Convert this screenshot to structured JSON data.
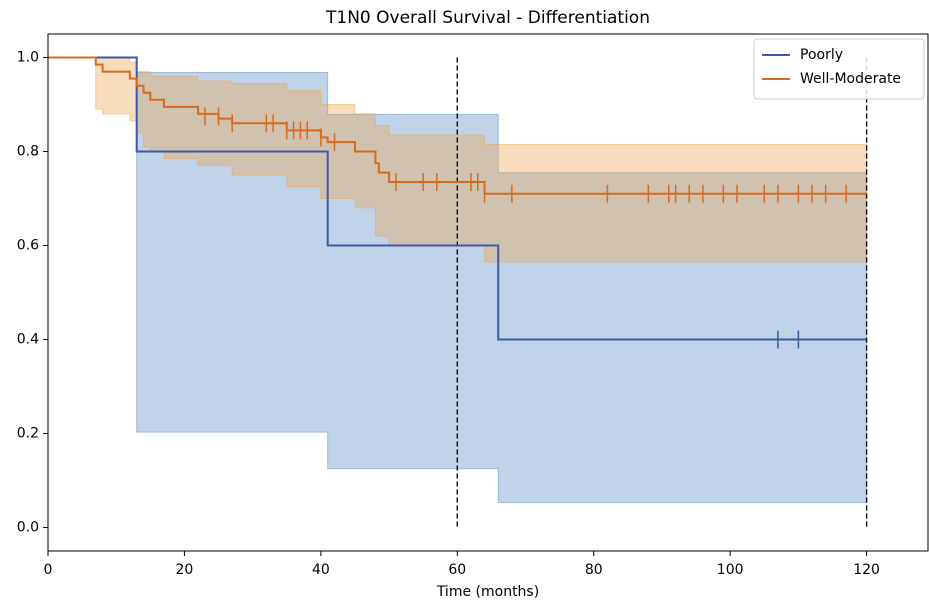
{
  "chart_data": {
    "type": "kaplan-meier",
    "title": "T1N0 Overall Survival - Differentiation",
    "x_label": "Time (months)",
    "xlim": [
      0,
      129
    ],
    "ylim": [
      -0.05,
      1.05
    ],
    "xticks": [
      0,
      20,
      40,
      60,
      80,
      100,
      120
    ],
    "yticks": [
      {
        "value": 0,
        "label": "0.0"
      },
      {
        "value": 0.2,
        "label": "0.2"
      },
      {
        "value": 0.4,
        "label": "0.4"
      },
      {
        "value": 0.6,
        "label": "0.6"
      },
      {
        "value": 0.8,
        "label": "0.8"
      },
      {
        "value": 1,
        "label": "1.0"
      }
    ],
    "reference_lines": [
      60,
      120
    ],
    "legend": "upper right",
    "series": [
      {
        "name": "Poorly",
        "color": "#3b5ba5",
        "band_color": "#5b8cc6",
        "x": [
          0,
          13,
          41,
          66,
          120
        ],
        "values": [
          1.0,
          0.8,
          0.6,
          0.4,
          0.4
        ],
        "ci_upper": [
          1.0,
          0.968,
          0.879,
          0.755,
          0.755
        ],
        "ci_lower": [
          1.0,
          0.203,
          0.125,
          0.053,
          0.053
        ],
        "censor_x": [
          107,
          110
        ],
        "censor_values": [
          0.4,
          0.4
        ]
      },
      {
        "name": "Well-Moderate",
        "color": "#d9691f",
        "band_color": "#eba550",
        "x": [
          0,
          7,
          8,
          12,
          13,
          14,
          15,
          17,
          22,
          25,
          27,
          35,
          40,
          41,
          45,
          48,
          48.5,
          50,
          64,
          120
        ],
        "values": [
          1.0,
          0.985,
          0.97,
          0.955,
          0.94,
          0.925,
          0.91,
          0.895,
          0.88,
          0.87,
          0.86,
          0.845,
          0.83,
          0.82,
          0.8,
          0.775,
          0.755,
          0.735,
          0.71,
          0.71
        ],
        "ci_upper": [
          1.0,
          1.0,
          1.0,
          0.99,
          0.97,
          0.97,
          0.96,
          0.96,
          0.95,
          0.95,
          0.945,
          0.93,
          0.9,
          0.9,
          0.88,
          0.855,
          0.855,
          0.835,
          0.815,
          0.815
        ],
        "ci_lower": [
          1.0,
          0.89,
          0.88,
          0.865,
          0.84,
          0.81,
          0.8,
          0.785,
          0.77,
          0.77,
          0.75,
          0.725,
          0.7,
          0.7,
          0.68,
          0.62,
          0.62,
          0.6,
          0.565,
          0.565
        ],
        "censor_x": [
          23,
          25,
          27,
          32,
          33,
          35,
          36,
          37,
          38,
          40,
          42,
          51,
          55,
          57,
          62,
          63,
          64,
          68,
          82,
          88,
          91,
          92,
          94,
          96,
          99,
          101,
          105,
          107,
          110,
          112,
          114,
          117
        ],
        "censor_values": [
          0.875,
          0.875,
          0.86,
          0.86,
          0.86,
          0.845,
          0.845,
          0.845,
          0.845,
          0.83,
          0.82,
          0.735,
          0.735,
          0.735,
          0.735,
          0.735,
          0.71,
          0.71,
          0.71,
          0.71,
          0.71,
          0.71,
          0.71,
          0.71,
          0.71,
          0.71,
          0.71,
          0.71,
          0.71,
          0.71,
          0.71,
          0.71
        ]
      }
    ]
  }
}
